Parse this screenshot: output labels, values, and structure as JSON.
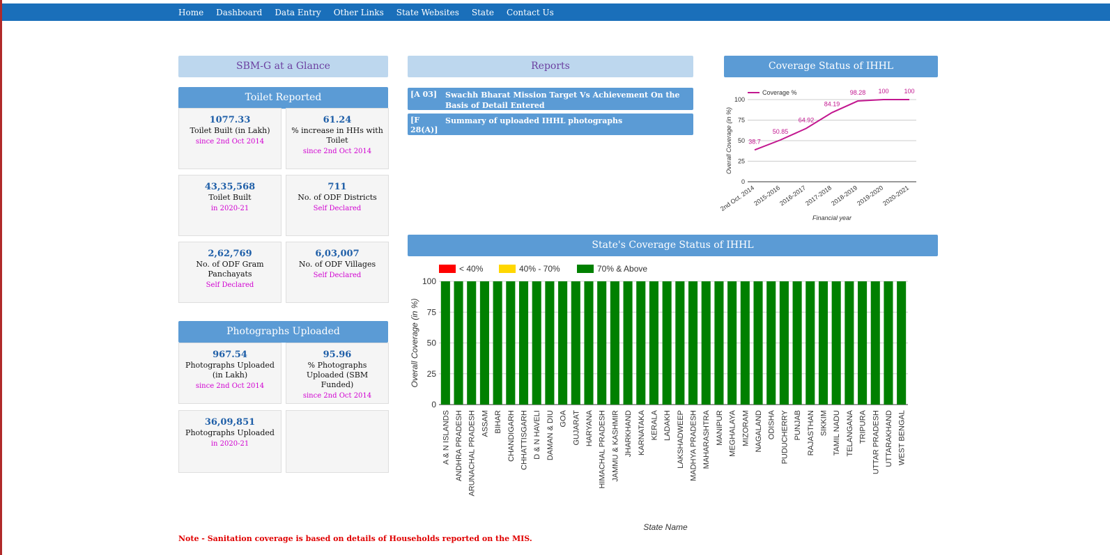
{
  "nav": [
    "Home",
    "Dashboard",
    "Data Entry",
    "Other Links",
    "State Websites",
    "State",
    "Contact Us"
  ],
  "glance": {
    "title": "SBM-G at a Glance",
    "toilet_title": "Toilet Reported",
    "toilet_cards": [
      {
        "value": "1077.33",
        "label": "Toilet Built (in Lakh)",
        "sub": "since 2nd Oct 2014"
      },
      {
        "value": "61.24",
        "label": "% increase in HHs with Toilet",
        "sub": "since 2nd Oct 2014"
      },
      {
        "value": "43,35,568",
        "label": "Toilet Built",
        "sub": "in 2020-21"
      },
      {
        "value": "711",
        "label": "No. of ODF Districts",
        "sub": "Self Declared"
      },
      {
        "value": "2,62,769",
        "label": "No. of ODF Gram Panchayats",
        "sub": "Self Declared"
      },
      {
        "value": "6,03,007",
        "label": "No. of ODF Villages",
        "sub": "Self Declared"
      }
    ],
    "photo_title": "Photographs Uploaded",
    "photo_cards": [
      {
        "value": "967.54",
        "label": "Photographs Uploaded (in Lakh)",
        "sub": "since 2nd Oct 2014"
      },
      {
        "value": "95.96",
        "label": "% Photographs Uploaded (SBM Funded)",
        "sub": "since 2nd Oct 2014"
      },
      {
        "value": "36,09,851",
        "label": "Photographs Uploaded",
        "sub": "in 2020-21"
      }
    ]
  },
  "reports": {
    "title": "Reports",
    "items": [
      {
        "code": "[A 03]",
        "title": "Swachh Bharat Mission Target Vs Achievement On the Basis of Detail Entered"
      },
      {
        "code": "[F 28(A)]",
        "title": "Summary of uploaded IHHL photographs"
      }
    ]
  },
  "coverage": {
    "title": "Coverage Status of IHHL",
    "legend": "Coverage %",
    "xlabel": "Financial year",
    "ylabel": "Overall Coverage (in %)",
    "color": "#c2178f"
  },
  "state_coverage": {
    "title": "State's Coverage Status of IHHL",
    "legend": [
      {
        "label": "< 40%",
        "color": "#ff0000"
      },
      {
        "label": "40% - 70%",
        "color": "#ffd700"
      },
      {
        "label": "70% & Above",
        "color": "#008000"
      }
    ],
    "xlabel": "State Name",
    "ylabel": "Overall Coverage (in %)"
  },
  "note": "Note - Sanitation coverage is based on details of Households reported on the MIS.",
  "chart_data": [
    {
      "type": "line",
      "title": "Coverage Status of IHHL",
      "categories": [
        "2nd Oct. 2014",
        "2015-2016",
        "2016-2017",
        "2017-2018",
        "2018-2019",
        "2019-2020",
        "2020-2021"
      ],
      "series": [
        {
          "name": "Coverage %",
          "values": [
            38.7,
            50.85,
            64.92,
            84.19,
            98.28,
            100,
            100
          ]
        }
      ],
      "xlabel": "Financial year",
      "ylabel": "Overall Coverage (in %)",
      "ylim": [
        0,
        100
      ],
      "yticks": [
        0,
        25,
        50,
        75,
        100
      ],
      "legend": "top-left"
    },
    {
      "type": "bar",
      "title": "State's Coverage Status of IHHL",
      "categories": [
        "A & N ISLANDS",
        "ANDHRA PRADESH",
        "ARUNACHAL PRADESH",
        "ASSAM",
        "BIHAR",
        "CHANDIGARH",
        "CHHATTISGARH",
        "D & N HAVELI",
        "DAMAN & DIU",
        "GOA",
        "GUJARAT",
        "HARYANA",
        "HIMACHAL PRADESH",
        "JAMMU & KASHMIR",
        "JHARKHAND",
        "KARNATAKA",
        "KERALA",
        "LADAKH",
        "LAKSHADWEEP",
        "MADHYA PRADESH",
        "MAHARASHTRA",
        "MANIPUR",
        "MEGHALAYA",
        "MIZORAM",
        "NAGALAND",
        "ODISHA",
        "PUDUCHERRY",
        "PUNJAB",
        "RAJASTHAN",
        "SIKKIM",
        "TAMIL NADU",
        "TELANGANA",
        "TRIPURA",
        "UTTAR PRADESH",
        "UTTARAKHAND",
        "WEST BENGAL"
      ],
      "values": [
        100,
        100,
        100,
        100,
        100,
        100,
        100,
        100,
        100,
        100,
        100,
        100,
        100,
        100,
        100,
        100,
        100,
        100,
        100,
        100,
        100,
        100,
        100,
        100,
        100,
        100,
        100,
        100,
        100,
        100,
        100,
        100,
        100,
        100,
        100,
        100
      ],
      "xlabel": "State Name",
      "ylabel": "Overall Coverage (in %)",
      "ylim": [
        0,
        100
      ],
      "yticks": [
        0,
        25,
        50,
        75,
        100
      ],
      "bar_color": "#008000",
      "legend": "top-left"
    }
  ]
}
